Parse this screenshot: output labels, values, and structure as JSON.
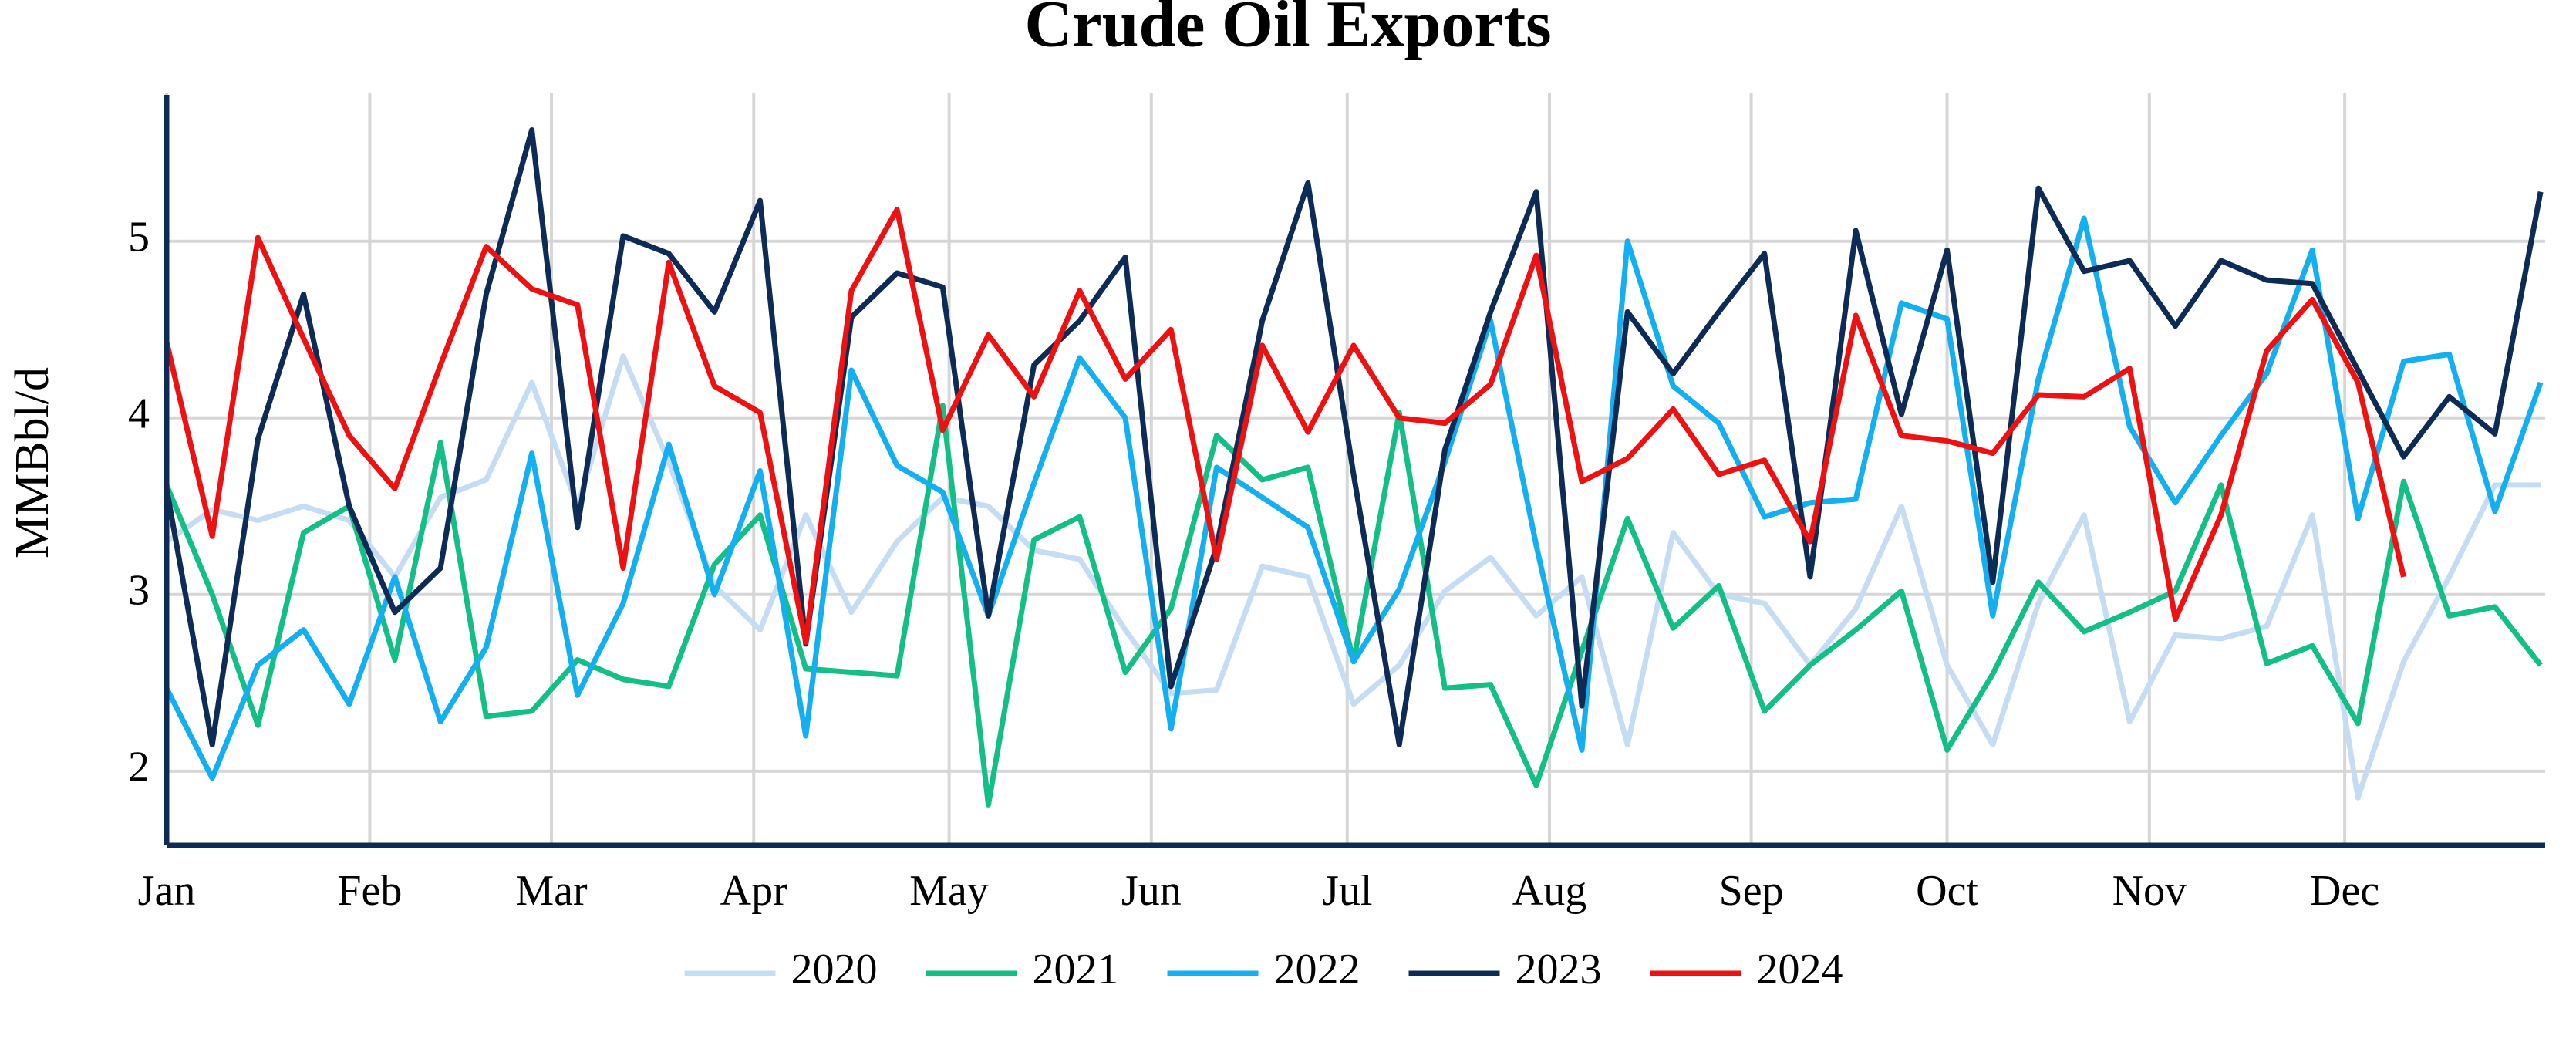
{
  "chart_data": {
    "type": "line",
    "title": "Crude Oil Exports",
    "ylabel": "MMBbl/d",
    "x": [
      1,
      2,
      3,
      4,
      5,
      6,
      7,
      8,
      9,
      10,
      11,
      12,
      13,
      14,
      15,
      16,
      17,
      18,
      19,
      20,
      21,
      22,
      23,
      24,
      25,
      26,
      27,
      28,
      29,
      30,
      31,
      32,
      33,
      34,
      35,
      36,
      37,
      38,
      39,
      40,
      41,
      42,
      43,
      44,
      45,
      46,
      47,
      48,
      49,
      50,
      51,
      52,
      53
    ],
    "xlim": [
      1,
      53.1
    ],
    "xticks": [
      {
        "value": 1,
        "label": "Jan"
      },
      {
        "value": 5.45,
        "label": "Feb"
      },
      {
        "value": 9.43,
        "label": "Mar"
      },
      {
        "value": 13.86,
        "label": "Apr"
      },
      {
        "value": 18.14,
        "label": "May"
      },
      {
        "value": 22.57,
        "label": "Jun"
      },
      {
        "value": 26.86,
        "label": "Jul"
      },
      {
        "value": 31.29,
        "label": "Aug"
      },
      {
        "value": 35.71,
        "label": "Sep"
      },
      {
        "value": 40,
        "label": "Oct"
      },
      {
        "value": 44.43,
        "label": "Nov"
      },
      {
        "value": 48.71,
        "label": "Dec"
      }
    ],
    "ylim": [
      1.58,
      5.82
    ],
    "yticks": [
      2,
      3,
      4,
      5
    ],
    "grid": true,
    "legend": "bottom",
    "series": [
      {
        "name": "2020",
        "color": "#c6dcf2",
        "values": [
          3.3,
          3.48,
          3.42,
          3.5,
          3.42,
          3.1,
          3.55,
          3.65,
          4.2,
          3.5,
          4.35,
          3.75,
          3.05,
          2.8,
          3.45,
          2.9,
          3.3,
          3.55,
          3.5,
          3.25,
          3.2,
          2.8,
          2.44,
          2.46,
          3.16,
          3.1,
          2.38,
          2.6,
          3.02,
          3.21,
          2.88,
          3.1,
          2.15,
          3.35,
          3.0,
          2.95,
          2.6,
          2.92,
          3.5,
          2.6,
          2.15,
          2.95,
          3.45,
          2.28,
          2.77,
          2.75,
          2.82,
          3.45,
          1.85,
          2.62,
          3.1,
          3.62,
          3.62
        ]
      },
      {
        "name": "2021",
        "color": "#13bf86",
        "values": [
          3.62,
          3.0,
          2.26,
          3.35,
          3.5,
          2.63,
          3.86,
          2.31,
          2.34,
          2.63,
          2.52,
          2.48,
          3.17,
          3.45,
          2.58,
          2.56,
          2.54,
          4.07,
          1.81,
          3.31,
          3.44,
          2.56,
          2.92,
          3.9,
          3.65,
          3.72,
          2.62,
          4.03,
          2.47,
          2.49,
          1.92,
          2.68,
          3.43,
          2.81,
          3.05,
          2.34,
          2.6,
          2.8,
          3.02,
          2.12,
          2.55,
          3.07,
          2.79,
          2.9,
          3.02,
          3.62,
          2.61,
          2.71,
          2.27,
          3.64,
          2.88,
          2.93,
          2.6
        ]
      },
      {
        "name": "2022",
        "color": "#13aff0",
        "values": [
          2.47,
          1.96,
          2.6,
          2.8,
          2.38,
          3.1,
          2.28,
          2.7,
          3.8,
          2.43,
          2.95,
          3.85,
          3.0,
          3.7,
          2.2,
          4.27,
          3.73,
          3.58,
          2.88,
          3.63,
          4.34,
          4.0,
          2.24,
          3.72,
          3.55,
          3.38,
          2.62,
          3.03,
          3.75,
          4.55,
          3.28,
          2.12,
          5.0,
          4.18,
          3.97,
          3.44,
          3.52,
          3.54,
          4.65,
          4.56,
          2.88,
          4.22,
          5.13,
          3.95,
          3.52,
          3.9,
          4.25,
          4.95,
          3.43,
          4.32,
          4.36,
          3.47,
          4.2
        ]
      },
      {
        "name": "2023",
        "color": "#0d2b55",
        "values": [
          3.6,
          2.15,
          3.88,
          4.7,
          3.5,
          2.9,
          3.15,
          4.7,
          5.63,
          3.38,
          5.03,
          4.93,
          4.6,
          5.23,
          2.72,
          4.57,
          4.82,
          4.74,
          2.88,
          4.3,
          4.55,
          4.91,
          2.48,
          3.27,
          4.55,
          5.33,
          3.68,
          2.15,
          3.82,
          4.6,
          5.28,
          2.37,
          4.6,
          4.25,
          4.6,
          4.93,
          3.1,
          5.06,
          4.02,
          4.95,
          3.07,
          5.3,
          4.83,
          4.89,
          4.52,
          4.89,
          4.78,
          4.76,
          4.27,
          3.78,
          4.12,
          3.91,
          5.28
        ]
      },
      {
        "name": "2024",
        "color": "#ee1111",
        "values": [
          4.43,
          3.33,
          5.02,
          4.45,
          3.9,
          3.6,
          4.3,
          4.97,
          4.73,
          4.64,
          3.15,
          4.88,
          4.18,
          4.03,
          2.73,
          4.72,
          5.18,
          3.93,
          4.47,
          4.12,
          4.72,
          4.22,
          4.5,
          3.2,
          4.41,
          3.92,
          4.41,
          4.0,
          3.97,
          4.19,
          4.92,
          3.64,
          3.77,
          4.05,
          3.68,
          3.76,
          3.3,
          4.58,
          3.9,
          3.87,
          3.8,
          4.13,
          4.12,
          4.28,
          2.86,
          3.45,
          4.38,
          4.67,
          4.2,
          3.1,
          null,
          null,
          null
        ]
      }
    ]
  }
}
